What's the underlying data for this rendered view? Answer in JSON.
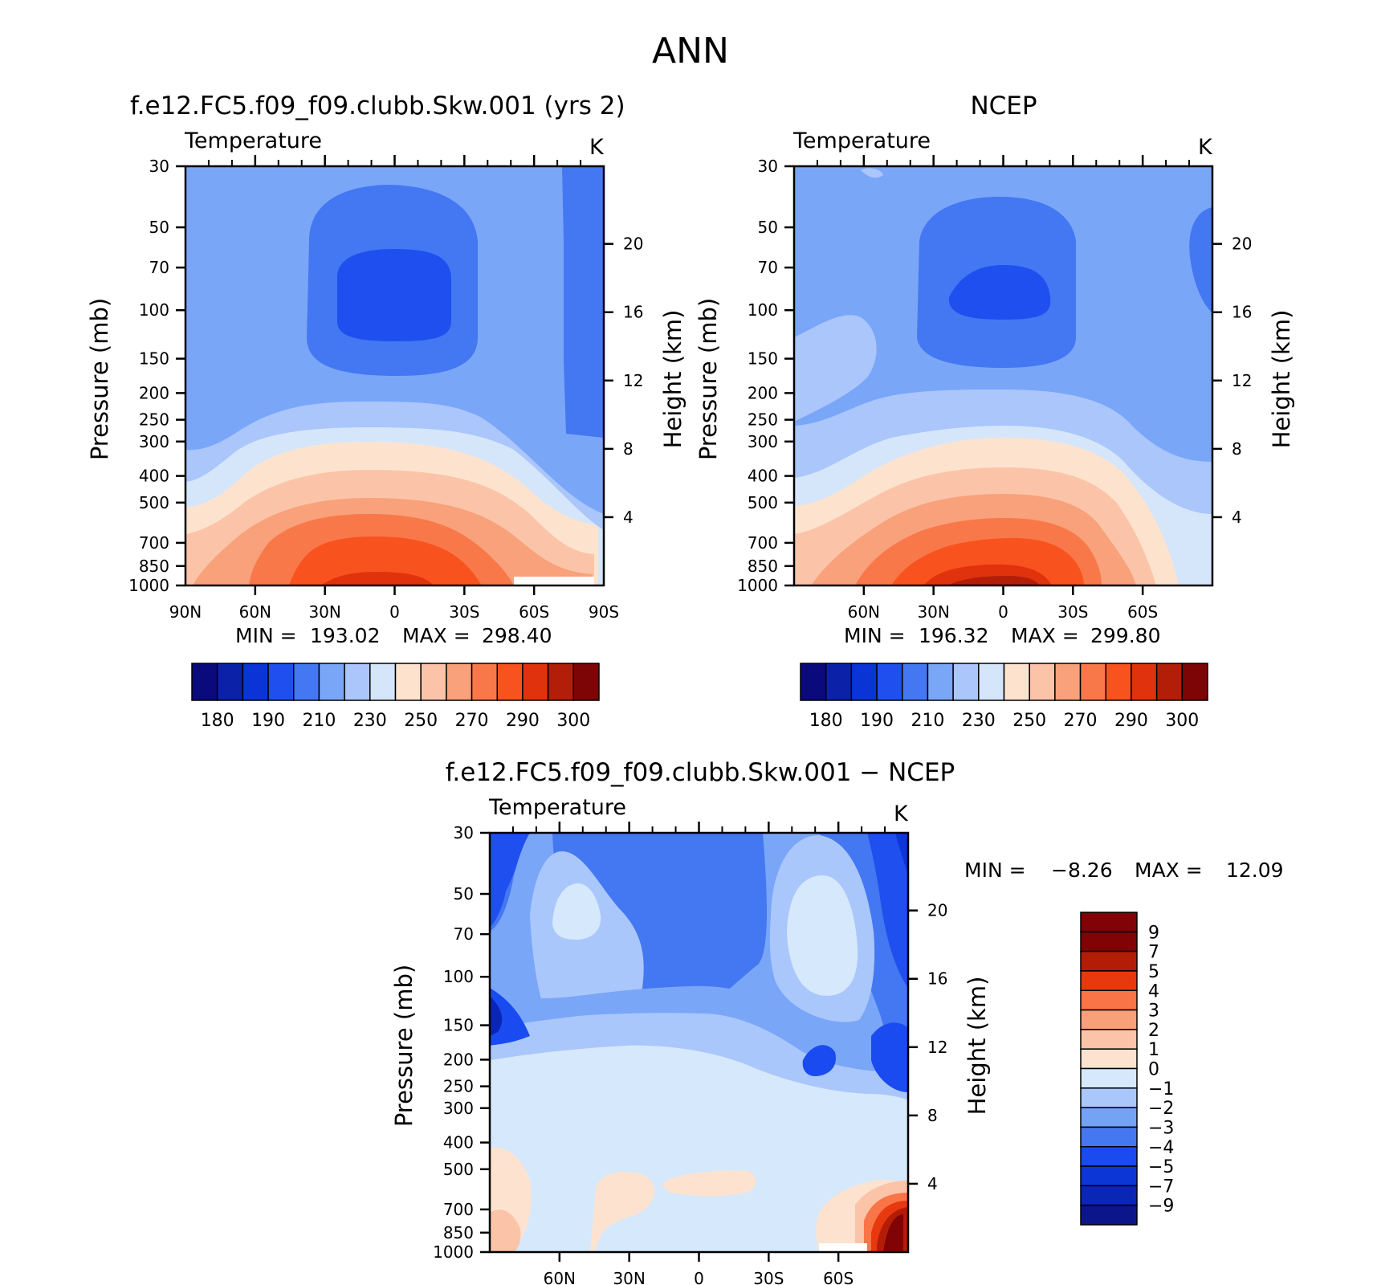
{
  "page": {
    "title": "ANN"
  },
  "colors": {
    "abs_palette": [
      "#0a0a7c",
      "#0b22a8",
      "#0a34d6",
      "#1f4fee",
      "#4477f2",
      "#7aa6f8",
      "#aac6fa",
      "#d5e6fb",
      "#fde3ce",
      "#fbc4a8",
      "#f8a17b",
      "#f9784a",
      "#f8531f",
      "#e0330d",
      "#b31e08",
      "#7e0505"
    ],
    "diff_palette": [
      "#0b168a",
      "#0a26b4",
      "#0c37d6",
      "#1a4bf0",
      "#4577f0",
      "#75a3f4",
      "#aac7fb",
      "#d6e8fb",
      "#fde3cf",
      "#fbc3a7",
      "#f8a07a",
      "#f97446",
      "#e8380f",
      "#b31d07",
      "#800305"
    ]
  },
  "chart_data": [
    {
      "type": "contour",
      "title": "f.e12.FC5.f09_f09.clubb.Skw.001 (yrs 2)",
      "variable": "Temperature",
      "units": "K",
      "ylabel": "Pressure (mb)",
      "ylabel_right": "Height (km)",
      "x_ticks": [
        "90N",
        "60N",
        "30N",
        "0",
        "30S",
        "60S",
        "90S"
      ],
      "x_range": [
        90,
        -90
      ],
      "y_ticks": [
        30,
        50,
        70,
        100,
        150,
        200,
        250,
        300,
        400,
        500,
        700,
        850,
        1000
      ],
      "y_range": [
        30,
        1000
      ],
      "height_ticks": [
        20,
        16,
        12,
        8,
        4
      ],
      "stats": {
        "min_label": "MIN =",
        "min": "193.02",
        "max_label": "MAX =",
        "max": "298.40"
      },
      "colorbar": {
        "labels": [
          "180",
          "190",
          "210",
          "230",
          "250",
          "270",
          "290",
          "300"
        ],
        "levels": [
          180,
          185,
          190,
          200,
          210,
          220,
          230,
          240,
          250,
          260,
          270,
          280,
          290,
          295,
          300
        ]
      }
    },
    {
      "type": "contour",
      "title": "NCEP",
      "variable": "Temperature",
      "units": "K",
      "ylabel": "Pressure (mb)",
      "ylabel_right": "Height (km)",
      "x_ticks": [
        "60N",
        "30N",
        "0",
        "30S",
        "60S"
      ],
      "x_range": [
        90,
        -90
      ],
      "y_ticks": [
        30,
        50,
        70,
        100,
        150,
        200,
        250,
        300,
        400,
        500,
        700,
        850,
        1000
      ],
      "y_range": [
        30,
        1000
      ],
      "height_ticks": [
        20,
        16,
        12,
        8,
        4
      ],
      "stats": {
        "min_label": "MIN =",
        "min": "196.32",
        "max_label": "MAX =",
        "max": "299.80"
      },
      "colorbar": {
        "labels": [
          "180",
          "190",
          "210",
          "230",
          "250",
          "270",
          "290",
          "300"
        ],
        "levels": [
          180,
          185,
          190,
          200,
          210,
          220,
          230,
          240,
          250,
          260,
          270,
          280,
          290,
          295,
          300
        ]
      }
    },
    {
      "type": "contour",
      "title": "f.e12.FC5.f09_f09.clubb.Skw.001 − NCEP",
      "variable": "Temperature",
      "units": "K",
      "ylabel": "Pressure (mb)",
      "ylabel_right": "Height (km)",
      "x_ticks": [
        "60N",
        "30N",
        "0",
        "30S",
        "60S"
      ],
      "x_range": [
        90,
        -90
      ],
      "y_ticks": [
        30,
        50,
        70,
        100,
        150,
        200,
        250,
        300,
        400,
        500,
        700,
        850,
        1000
      ],
      "y_range": [
        30,
        1000
      ],
      "height_ticks": [
        20,
        16,
        12,
        8,
        4
      ],
      "stats": {
        "min_label": "MIN =",
        "min": "−8.26",
        "max_label": "MAX =",
        "max": "12.09"
      },
      "colorbar": {
        "labels": [
          "9",
          "7",
          "5",
          "4",
          "3",
          "2",
          "1",
          "0",
          "−1",
          "−2",
          "−3",
          "−4",
          "−5",
          "−7",
          "−9"
        ],
        "levels": [
          9,
          7,
          5,
          4,
          3,
          2,
          1,
          0,
          -1,
          -2,
          -3,
          -4,
          -5,
          -7,
          -9
        ]
      }
    }
  ]
}
